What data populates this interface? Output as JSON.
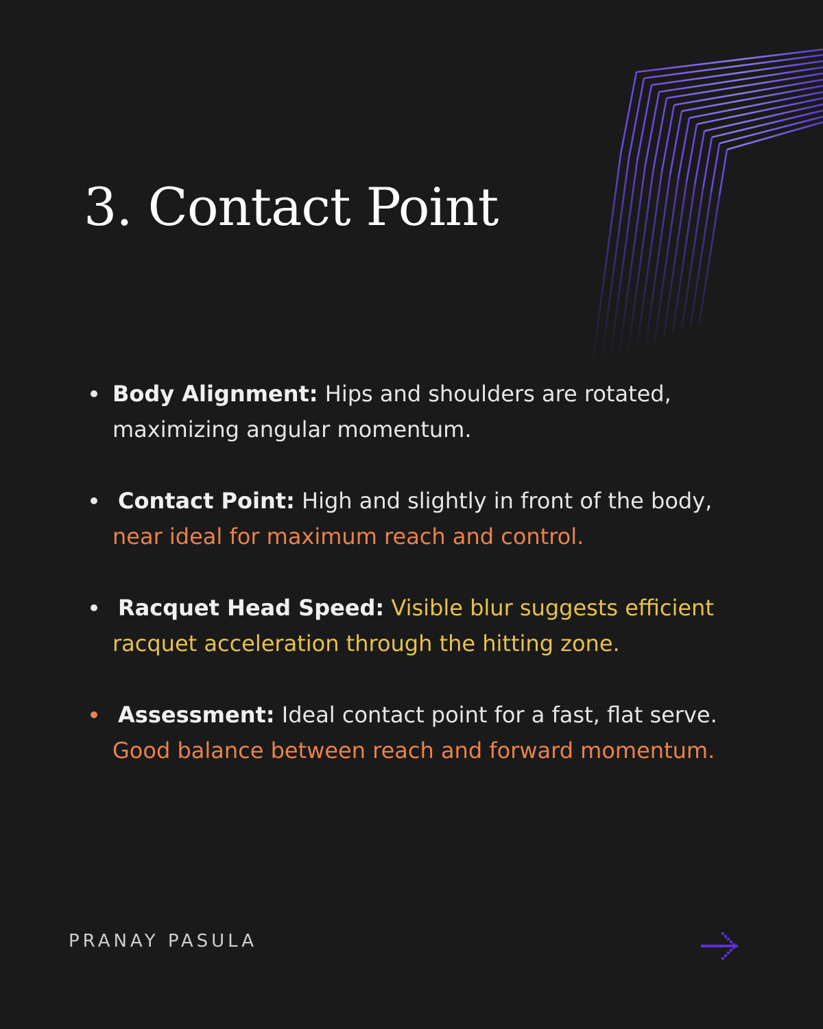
{
  "title": "3. Contact Point",
  "points": [
    {
      "label": "Body Alignment:",
      "text": "Hips and shoulders are rotated, maximizing angular momentum.",
      "highlight": ""
    },
    {
      "label": "Contact Point:",
      "text": "High and slightly in front of the body,",
      "highlight": "near ideal for maximum reach and control."
    },
    {
      "label": "Racquet Head Speed:",
      "text": "",
      "highlight": "Visible blur suggests efficient racquet acceleration through the hitting zone."
    },
    {
      "label": "Assessment:",
      "text": "Ideal contact point for a fast, flat serve.",
      "highlight": "Good balance between reach and forward momentum."
    }
  ],
  "author": "PRANAY PASULA",
  "icons": {
    "decoration": "chevron-lines-decoration",
    "next": "arrow-right-icon"
  },
  "colors": {
    "background": "#1a1a1a",
    "text": "#e6e6e6",
    "orange_accent": "#e8834c",
    "yellow_accent": "#e7c24b",
    "purple_accent": "#5b2fd6"
  }
}
